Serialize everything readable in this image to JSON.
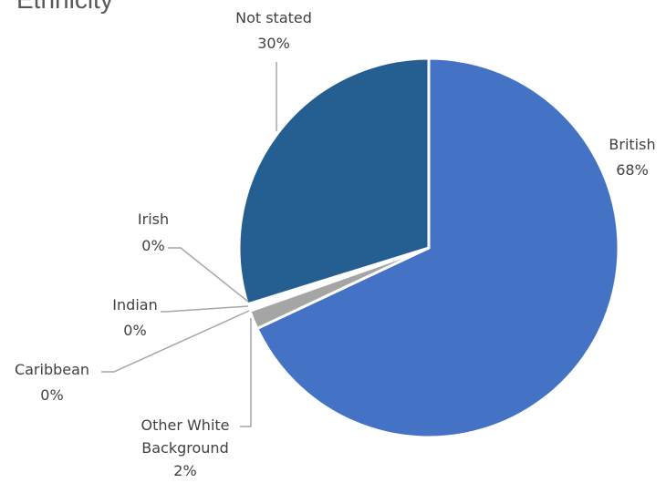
{
  "chart_data": {
    "type": "pie",
    "title": "Ethnicity",
    "slices": [
      {
        "name": "British",
        "value": 68,
        "label": "68%",
        "color": "#4472c4"
      },
      {
        "name": "Other White Background",
        "value": 1.6,
        "label": "2%",
        "color": "#a5a5a5"
      },
      {
        "name": "Caribbean",
        "value": 0.2,
        "label": "0%",
        "color": "#ffc000"
      },
      {
        "name": "Indian",
        "value": 0.2,
        "label": "0%",
        "color": "#5b9bd5"
      },
      {
        "name": "Irish",
        "value": 0.2,
        "label": "0%",
        "color": "#70ad47"
      },
      {
        "name": "Not stated",
        "value": 29.8,
        "label": "30%",
        "color": "#255e91"
      }
    ]
  }
}
